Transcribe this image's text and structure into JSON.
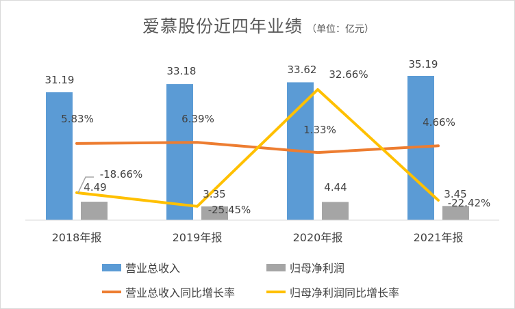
{
  "title": "爱慕股份近四年业绩",
  "unit": "（单位：亿元）",
  "chart_data": {
    "type": "bar",
    "categories": [
      "2018年报",
      "2019年报",
      "2020年报",
      "2021年报"
    ],
    "series": [
      {
        "name": "营业总收入",
        "kind": "bar",
        "color": "#5b9bd5",
        "values": [
          31.19,
          33.18,
          33.62,
          35.19
        ],
        "labels": [
          "31.19",
          "33.18",
          "33.62",
          "35.19"
        ]
      },
      {
        "name": "归母净利润",
        "kind": "bar",
        "color": "#a5a5a5",
        "values": [
          4.49,
          3.35,
          4.44,
          3.45
        ],
        "labels": [
          "4.49",
          "3.35",
          "4.44",
          "3.45"
        ]
      },
      {
        "name": "营业总收入同比增长率",
        "kind": "line",
        "color": "#ed7d31",
        "values": [
          5.83,
          6.39,
          1.33,
          4.66
        ],
        "labels": [
          "5.83%",
          "6.39%",
          "1.33%",
          "4.66%"
        ]
      },
      {
        "name": "归母净利润同比增长率",
        "kind": "line",
        "color": "#ffc000",
        "values": [
          -18.66,
          -25.45,
          32.66,
          -22.42
        ],
        "labels": [
          "-18.66%",
          "-25.45%",
          "32.66%",
          "-22.42%"
        ]
      }
    ],
    "legend_position": "bottom",
    "grid": false
  }
}
